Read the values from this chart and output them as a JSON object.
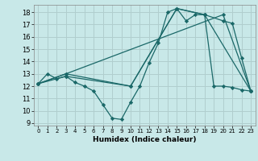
{
  "xlabel": "Humidex (Indice chaleur)",
  "bg_color": "#c8e8e8",
  "grid_color": "#b0cece",
  "line_color": "#1a6868",
  "xlim": [
    -0.5,
    23.5
  ],
  "ylim": [
    8.8,
    18.6
  ],
  "yticks": [
    9,
    10,
    11,
    12,
    13,
    14,
    15,
    16,
    17,
    18
  ],
  "xticks": [
    0,
    1,
    2,
    3,
    4,
    5,
    6,
    7,
    8,
    9,
    10,
    11,
    12,
    13,
    14,
    15,
    16,
    17,
    18,
    19,
    20,
    21,
    22,
    23
  ],
  "series": [
    {
      "x": [
        0,
        1,
        2,
        3,
        4,
        5,
        6,
        7,
        8,
        9,
        10,
        11,
        12,
        13,
        14,
        15,
        16,
        17,
        18,
        19,
        20,
        21,
        22,
        23
      ],
      "y": [
        12.2,
        13.0,
        12.6,
        12.8,
        12.3,
        12.0,
        11.6,
        10.5,
        9.4,
        9.3,
        10.7,
        12.0,
        13.9,
        15.5,
        18.0,
        18.3,
        17.3,
        17.8,
        17.8,
        12.0,
        12.0,
        11.9,
        11.7,
        11.6
      ]
    },
    {
      "x": [
        0,
        3,
        10,
        15,
        18,
        23
      ],
      "y": [
        12.2,
        12.8,
        12.0,
        18.3,
        17.8,
        11.6
      ]
    },
    {
      "x": [
        0,
        3,
        10,
        15,
        18,
        20,
        21,
        22,
        23
      ],
      "y": [
        12.2,
        13.0,
        12.0,
        18.3,
        17.8,
        17.3,
        17.1,
        14.3,
        11.6
      ]
    },
    {
      "x": [
        0,
        3,
        20,
        23
      ],
      "y": [
        12.2,
        13.0,
        17.8,
        11.6
      ]
    }
  ]
}
